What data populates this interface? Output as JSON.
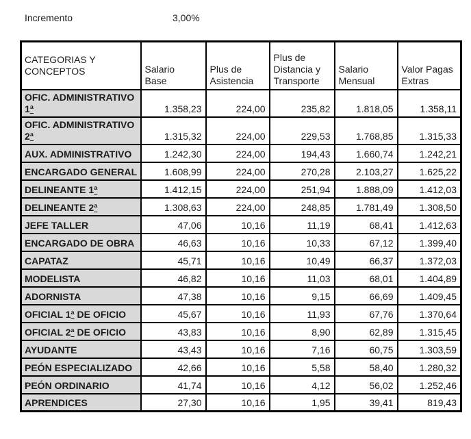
{
  "increment": {
    "label": "Incremento",
    "value": "3,00%"
  },
  "table": {
    "columns": [
      "CATEGORIAS Y\nCONCEPTOS",
      "Salario\nBase",
      "Plus de\nAsistencia",
      "Plus de\nDistancia y\nTransporte",
      "Salario\nMensual",
      "Valor Pagas\nExtras"
    ],
    "rows": [
      {
        "category": "OFIC. ADMINISTRATIVO 1ª",
        "values": [
          "1.358,23",
          "224,00",
          "235,82",
          "1.818,05",
          "1.358,11"
        ]
      },
      {
        "category": "OFIC. ADMINISTRATIVO 2ª",
        "values": [
          "1.315,32",
          "224,00",
          "229,53",
          "1.768,85",
          "1.315,33"
        ]
      },
      {
        "category": "AUX. ADMINISTRATIVO",
        "values": [
          "1.242,30",
          "224,00",
          "194,43",
          "1.660,74",
          "1.242,21"
        ]
      },
      {
        "category": "ENCARGADO GENERAL",
        "values": [
          "1.608,99",
          "224,00",
          "270,28",
          "2.103,27",
          "1.625,22"
        ]
      },
      {
        "category": "DELINEANTE 1ª",
        "values": [
          "1.412,15",
          "224,00",
          "251,94",
          "1.888,09",
          "1.412,03"
        ]
      },
      {
        "category": "DELINEANTE 2ª",
        "values": [
          "1.308,63",
          "224,00",
          "248,85",
          "1.781,49",
          "1.308,50"
        ]
      },
      {
        "category": "JEFE TALLER",
        "values": [
          "47,06",
          "10,16",
          "11,19",
          "68,41",
          "1.412,63"
        ]
      },
      {
        "category": "ENCARGADO DE OBRA",
        "values": [
          "46,63",
          "10,16",
          "10,33",
          "67,12",
          "1.399,40"
        ]
      },
      {
        "category": "CAPATAZ",
        "values": [
          "45,71",
          "10,16",
          "10,49",
          "66,37",
          "1.372,03"
        ]
      },
      {
        "category": "MODELISTA",
        "values": [
          "46,82",
          "10,16",
          "11,03",
          "68,01",
          "1.404,89"
        ]
      },
      {
        "category": "ADORNISTA",
        "values": [
          "47,38",
          "10,16",
          "9,15",
          "66,69",
          "1.409,45"
        ]
      },
      {
        "category": "OFICIAL 1ª DE OFICIO",
        "values": [
          "45,67",
          "10,16",
          "11,93",
          "67,76",
          "1.370,64"
        ]
      },
      {
        "category": "OFICIAL 2ª DE OFICIO",
        "values": [
          "43,83",
          "10,16",
          "8,90",
          "62,89",
          "1.315,45"
        ]
      },
      {
        "category": "AYUDANTE",
        "values": [
          "43,43",
          "10,16",
          "7,16",
          "60,75",
          "1.303,59"
        ]
      },
      {
        "category": "PEÓN ESPECIALIZADO",
        "values": [
          "42,66",
          "10,16",
          "5,58",
          "58,40",
          "1.280,32"
        ]
      },
      {
        "category": "PEÓN ORDINARIO",
        "values": [
          "41,74",
          "10,16",
          "4,12",
          "56,02",
          "1.252,46"
        ]
      },
      {
        "category": "APRENDICES",
        "values": [
          "27,30",
          "10,16",
          "1,95",
          "39,41",
          "819,43"
        ]
      }
    ]
  },
  "colors": {
    "category_cell_bg": "#d9d9d9",
    "border": "#000000",
    "text": "#1c1c1c",
    "background": "#ffffff"
  }
}
